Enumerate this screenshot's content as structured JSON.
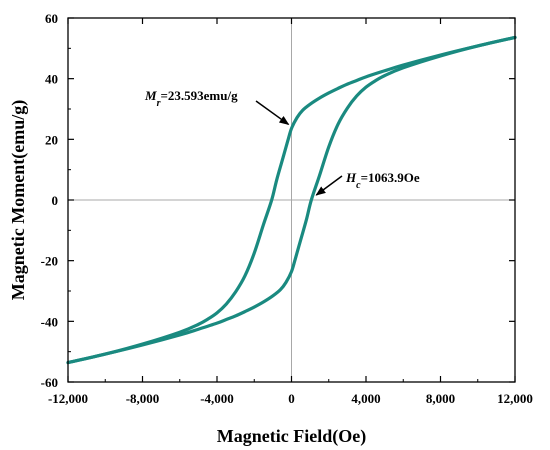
{
  "chart_data": {
    "type": "line",
    "title": "",
    "xlabel": "Magnetic Field(Oe)",
    "ylabel": "Magnetic Moment(emu/g)",
    "xlim": [
      -12000,
      12000
    ],
    "ylim": [
      -60,
      60
    ],
    "xticks": [
      -12000,
      -8000,
      -4000,
      0,
      4000,
      8000,
      12000
    ],
    "xtick_labels": [
      "-12,000",
      "-8,000",
      "-4,000",
      "0",
      "4,000",
      "8,000",
      "12,000"
    ],
    "yticks": [
      -60,
      -40,
      -20,
      0,
      20,
      40,
      60
    ],
    "ytick_labels": [
      "-60",
      "-40",
      "-20",
      "0",
      "20",
      "40",
      "60"
    ],
    "grid": false,
    "zero_lines": true,
    "color": "#1a8a80",
    "series": [
      {
        "name": "",
        "x": [
          -12000,
          -10000,
          -8000,
          -6000,
          -5000,
          -4500,
          -4000,
          -3500,
          -3000,
          -2500,
          -2000,
          -1500,
          -1064,
          -800,
          -500,
          -200,
          0,
          300,
          600,
          1000,
          1500,
          2000,
          2500,
          3000,
          3500,
          4000,
          5000,
          6000,
          8000,
          10000,
          12000
        ],
        "y": [
          -53.6,
          -50.8,
          -47.5,
          -43.6,
          -41.0,
          -39.3,
          -37.2,
          -34.3,
          -30.3,
          -25.0,
          -17.5,
          -8.0,
          0,
          6.5,
          13.0,
          19.5,
          23.593,
          27.2,
          29.6,
          31.6,
          33.6,
          35.3,
          36.8,
          38.2,
          39.4,
          40.6,
          42.6,
          44.5,
          47.8,
          50.8,
          53.6
        ]
      },
      {
        "name": "",
        "x": [
          12000,
          10000,
          8000,
          6000,
          5000,
          4500,
          4000,
          3500,
          3000,
          2500,
          2000,
          1500,
          1064,
          800,
          500,
          200,
          0,
          -300,
          -600,
          -1000,
          -1500,
          -2000,
          -2500,
          -3000,
          -3500,
          -4000,
          -5000,
          -6000,
          -8000,
          -10000,
          -12000
        ],
        "y": [
          53.6,
          50.8,
          47.5,
          43.6,
          41.0,
          39.3,
          37.2,
          34.3,
          30.3,
          25.0,
          17.5,
          8.0,
          0,
          -6.5,
          -13.0,
          -19.5,
          -23.593,
          -27.2,
          -29.6,
          -31.6,
          -33.6,
          -35.3,
          -36.8,
          -38.2,
          -39.4,
          -40.6,
          -42.6,
          -44.5,
          -47.8,
          -50.8,
          -53.6
        ]
      }
    ],
    "annotations": [
      {
        "symbol": "M",
        "subscript": "r",
        "text": "=23.593emu/g",
        "target": [
          0,
          23.593
        ]
      },
      {
        "symbol": "H",
        "subscript": "c",
        "text": "=1063.9Oe",
        "target": [
          1064,
          0
        ]
      }
    ]
  }
}
